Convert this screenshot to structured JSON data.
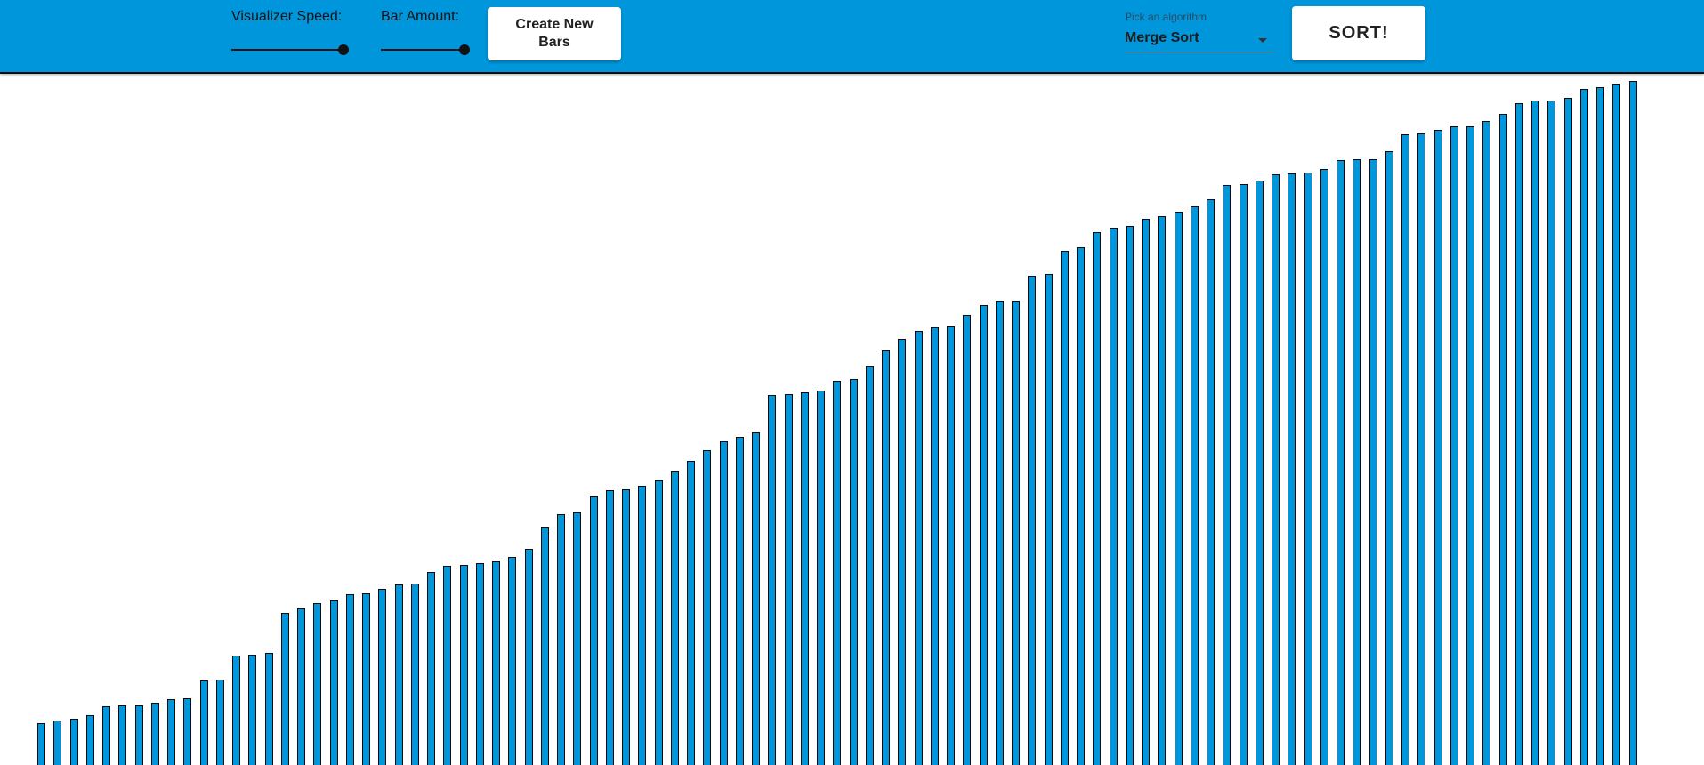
{
  "toolbar": {
    "speed_label": "Visualizer Speed:",
    "speed_value": 1.0,
    "amount_label": "Bar Amount:",
    "amount_value": 1.0,
    "create_button": "Create New Bars",
    "algorithm": {
      "caption": "Pick an algorithm",
      "selected": "Merge Sort"
    },
    "sort_button": "SORT!"
  },
  "colors": {
    "toolbar_bg": "#0096db",
    "bar_fill": "#0096db",
    "bar_border": "#0a0a0a"
  },
  "icons": {
    "dropdown": "chevron-down-icon"
  },
  "chart_data": {
    "type": "bar",
    "series": [
      {
        "values": [
          47,
          50,
          52,
          56,
          66,
          67,
          67,
          70,
          74,
          75,
          95,
          96,
          123,
          124,
          126,
          171,
          176,
          182,
          185,
          192,
          193,
          198,
          203,
          204,
          217,
          224,
          225,
          227,
          229,
          234,
          243,
          267,
          282,
          284,
          302,
          309,
          310,
          314,
          320,
          330,
          342,
          354,
          364,
          369,
          374,
          416,
          417,
          419,
          421,
          432,
          434,
          448,
          466,
          479,
          488,
          492,
          493,
          506,
          517,
          522,
          522,
          550,
          552,
          578,
          582,
          599,
          604,
          606,
          614,
          617,
          622,
          628,
          636,
          652,
          653,
          657,
          664,
          665,
          666,
          670,
          680,
          681,
          681,
          690,
          709,
          710,
          714,
          718,
          718,
          724,
          732,
          744,
          747,
          747,
          750,
          760,
          762,
          766,
          769
        ]
      }
    ]
  }
}
